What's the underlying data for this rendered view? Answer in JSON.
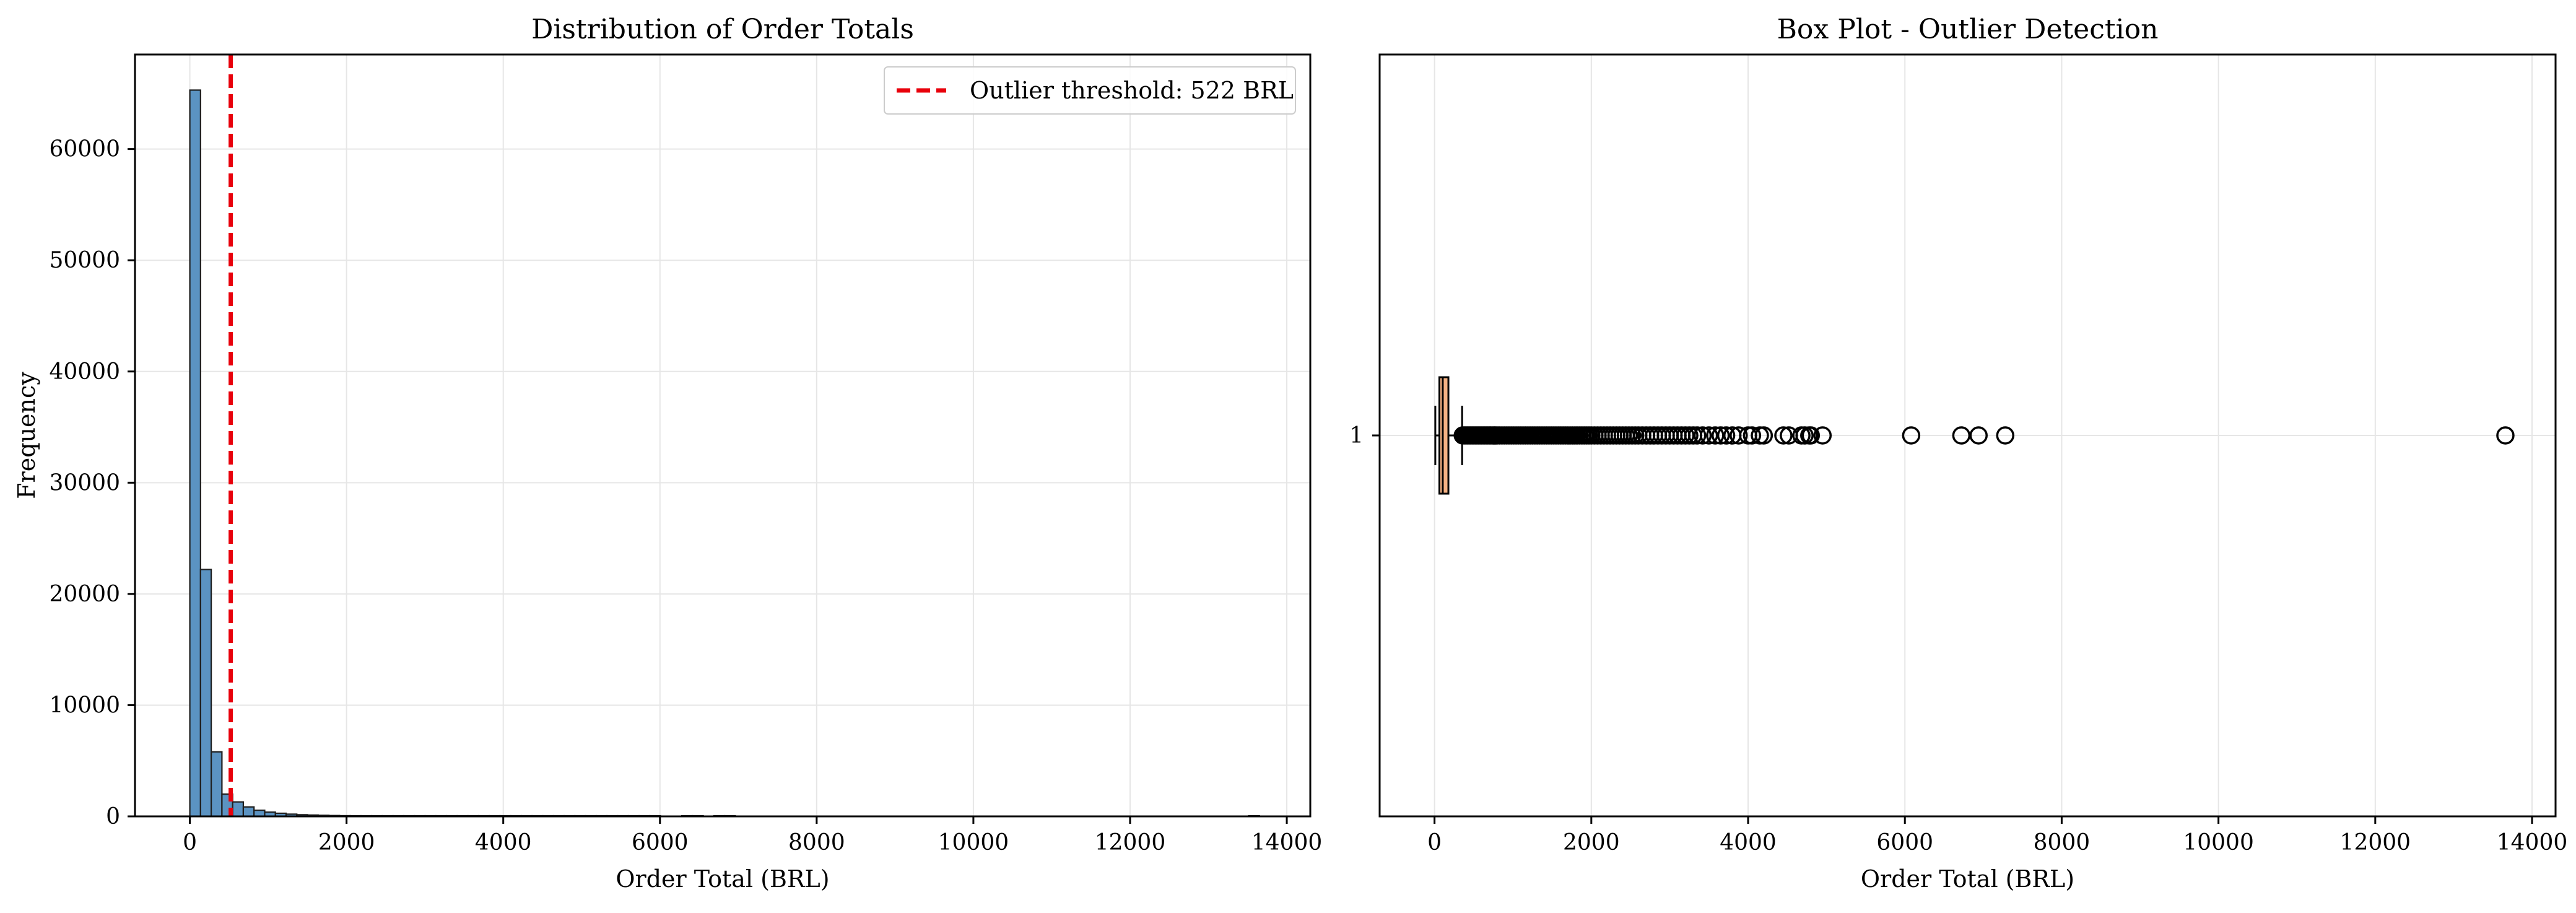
{
  "colors": {
    "hist_fill": "#5b93c2",
    "hist_edge": "#1f1f1f",
    "threshold_line": "#e8000b",
    "box_fill": "#f4b183",
    "grid": "#e6e6e6"
  },
  "chart_data": [
    {
      "type": "bar",
      "subtype": "histogram",
      "title": "Distribution of Order Totals",
      "xlabel": "Order Total (BRL)",
      "ylabel": "Frequency",
      "xlim": [
        -700,
        14300
      ],
      "ylim": [
        0,
        68500
      ],
      "xticks": [
        0,
        2000,
        4000,
        6000,
        8000,
        10000,
        12000,
        14000
      ],
      "yticks": [
        0,
        10000,
        20000,
        30000,
        40000,
        50000,
        60000
      ],
      "grid": true,
      "bin_width": 136.5,
      "bin_start": 0,
      "values": [
        65300,
        22200,
        5800,
        2000,
        1300,
        850,
        550,
        380,
        280,
        200,
        150,
        120,
        95,
        75,
        60,
        50,
        40,
        32,
        26,
        20,
        16,
        13,
        10,
        8,
        6,
        5,
        4,
        3,
        3,
        2,
        2,
        2,
        1,
        1,
        1,
        1,
        1,
        1,
        1,
        1,
        1,
        1,
        1,
        1,
        0,
        0,
        1,
        1,
        0,
        1,
        1,
        0,
        0,
        0,
        0,
        0,
        0,
        0,
        0,
        0,
        0,
        0,
        0,
        0,
        0,
        0,
        0,
        0,
        0,
        0,
        0,
        0,
        0,
        0,
        0,
        0,
        0,
        0,
        0,
        0,
        0,
        0,
        0,
        0,
        0,
        0,
        0,
        0,
        0,
        0,
        0,
        0,
        0,
        0,
        0,
        0,
        0,
        0,
        0,
        1
      ],
      "threshold": 522,
      "legend": {
        "placement": "upper right",
        "entries": [
          "Outlier threshold: 522 BRL"
        ]
      }
    },
    {
      "type": "box",
      "title": "Box Plot - Outlier Detection",
      "xlabel": "Order Total (BRL)",
      "ylabel": "",
      "xlim": [
        -700,
        14300
      ],
      "xticks": [
        0,
        2000,
        4000,
        6000,
        8000,
        10000,
        12000,
        14000
      ],
      "yticks": [
        1
      ],
      "ytick_labels": [
        "1"
      ],
      "grid": true,
      "orientation": "horizontal",
      "stats": {
        "whisker_low": 10,
        "q1": 62,
        "median": 105,
        "q3": 177,
        "whisker_high": 352
      },
      "outliers": [
        360,
        380,
        400,
        420,
        440,
        460,
        480,
        500,
        520,
        540,
        560,
        580,
        600,
        620,
        640,
        660,
        680,
        700,
        720,
        740,
        760,
        780,
        800,
        830,
        860,
        890,
        920,
        950,
        980,
        1010,
        1040,
        1070,
        1100,
        1130,
        1160,
        1190,
        1220,
        1250,
        1280,
        1310,
        1340,
        1370,
        1400,
        1430,
        1460,
        1490,
        1520,
        1550,
        1580,
        1610,
        1640,
        1670,
        1700,
        1730,
        1760,
        1790,
        1820,
        1850,
        1880,
        1910,
        1940,
        1970,
        2000,
        2040,
        2080,
        2120,
        2160,
        2200,
        2240,
        2280,
        2320,
        2360,
        2400,
        2440,
        2480,
        2520,
        2560,
        2600,
        2650,
        2700,
        2750,
        2800,
        2850,
        2900,
        2950,
        3000,
        3050,
        3100,
        3150,
        3200,
        3250,
        3300,
        3350,
        3420,
        3500,
        3580,
        3650,
        3720,
        3800,
        3880,
        4000,
        4050,
        4150,
        4200,
        4450,
        4520,
        4680,
        4720,
        4780,
        4800,
        4950,
        6080,
        6720,
        6940,
        7280,
        13660
      ]
    }
  ]
}
